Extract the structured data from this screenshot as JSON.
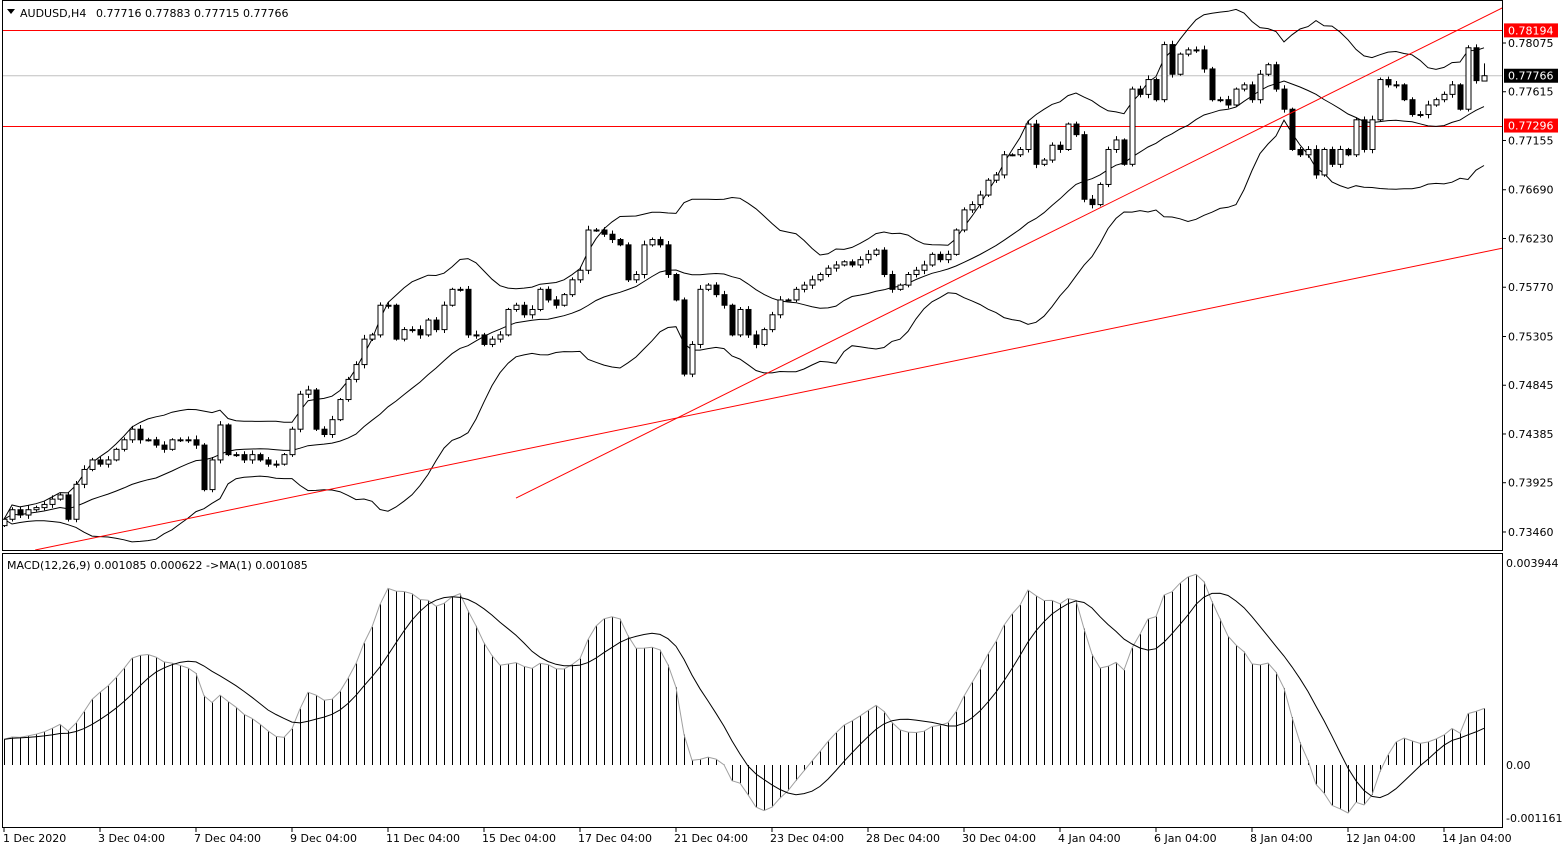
{
  "header": {
    "symbol": "AUDUSD,H4",
    "ohlc": "0.77716 0.77883 0.77715 0.77766"
  },
  "macd_header": {
    "text": "MACD(12,26,9) 0.001085 0.000622  ->MA(1) 0.001085"
  },
  "colors": {
    "line_red": "#ff0000",
    "price_label_black": "#000000",
    "bullish": "#ffffff",
    "bearish": "#000000",
    "current_price_line": "#c0c0c0"
  },
  "chart_data": [
    {
      "type": "candlestick",
      "title": "AUDUSD,H4",
      "ylim": [
        0.732,
        0.7848
      ],
      "price_ticks": [
        "0.78075",
        "0.77615",
        "0.77155",
        "0.76690",
        "0.76230",
        "0.75770",
        "0.75305",
        "0.74845",
        "0.74385",
        "0.73925",
        "0.73460"
      ],
      "x_labels": [
        "1 Dec 2020",
        "3 Dec 04:00",
        "7 Dec 04:00",
        "9 Dec 04:00",
        "11 Dec 04:00",
        "15 Dec 04:00",
        "17 Dec 04:00",
        "21 Dec 04:00",
        "23 Dec 04:00",
        "28 Dec 04:00",
        "30 Dec 04:00",
        "4 Jan 04:00",
        "6 Jan 04:00",
        "8 Jan 04:00",
        "12 Jan 04:00",
        "14 Jan 04:00"
      ],
      "x_label_every_bars": 12,
      "first_open": 0.7352,
      "last_bar": {
        "open": 0.77716,
        "high": 0.77883,
        "low": 0.77715,
        "close": 0.77766
      },
      "closes": [
        0.7358,
        0.7367,
        0.7362,
        0.7367,
        0.7369,
        0.7372,
        0.7377,
        0.7381,
        0.7358,
        0.7391,
        0.7405,
        0.7414,
        0.741,
        0.7414,
        0.7424,
        0.7433,
        0.7443,
        0.7433,
        0.7433,
        0.7428,
        0.7424,
        0.7433,
        0.7433,
        0.7433,
        0.7428,
        0.7386,
        0.7414,
        0.7447,
        0.7419,
        0.7419,
        0.7414,
        0.7419,
        0.7414,
        0.741,
        0.741,
        0.7419,
        0.7443,
        0.7476,
        0.748,
        0.7443,
        0.7438,
        0.7452,
        0.7471,
        0.749,
        0.7504,
        0.7528,
        0.7532,
        0.756,
        0.756,
        0.7528,
        0.7537,
        0.7537,
        0.7532,
        0.7546,
        0.7537,
        0.756,
        0.7575,
        0.7575,
        0.7532,
        0.7532,
        0.7523,
        0.7528,
        0.7532,
        0.7556,
        0.756,
        0.7551,
        0.7556,
        0.7575,
        0.7565,
        0.756,
        0.757,
        0.7584,
        0.7593,
        0.7631,
        0.7631,
        0.7627,
        0.7622,
        0.7617,
        0.7584,
        0.7589,
        0.7617,
        0.7622,
        0.7617,
        0.7589,
        0.7565,
        0.7495,
        0.7523,
        0.7575,
        0.7579,
        0.757,
        0.756,
        0.7532,
        0.7556,
        0.7532,
        0.7523,
        0.7537,
        0.7551,
        0.7565,
        0.7565,
        0.7575,
        0.7579,
        0.7584,
        0.7589,
        0.7595,
        0.7598,
        0.7601,
        0.7598,
        0.7603,
        0.7608,
        0.7612,
        0.7589,
        0.7575,
        0.7579,
        0.7589,
        0.7593,
        0.7598,
        0.7608,
        0.7603,
        0.7608,
        0.7631,
        0.765,
        0.7655,
        0.7664,
        0.7678,
        0.7683,
        0.7702,
        0.7702,
        0.7707,
        0.7731,
        0.7693,
        0.7697,
        0.7711,
        0.7707,
        0.7731,
        0.7721,
        0.766,
        0.7655,
        0.7674,
        0.7707,
        0.7716,
        0.7693,
        0.7764,
        0.7759,
        0.7773,
        0.7754,
        0.7806,
        0.7778,
        0.7797,
        0.7801,
        0.7801,
        0.7783,
        0.7754,
        0.7754,
        0.7749,
        0.7764,
        0.7768,
        0.7754,
        0.7778,
        0.7787,
        0.7764,
        0.7745,
        0.7707,
        0.7702,
        0.7707,
        0.7683,
        0.7707,
        0.7693,
        0.7707,
        0.7702,
        0.7735,
        0.7707,
        0.7735,
        0.7773,
        0.7768,
        0.7768,
        0.7754,
        0.774,
        0.774,
        0.7749,
        0.7754,
        0.7759,
        0.7768,
        0.7745,
        0.7803,
        0.7772,
        0.77766
      ],
      "indicators": {
        "bollinger": {
          "period": 20,
          "deviations": 2
        }
      },
      "horizontal_lines": [
        {
          "price": 0.78194,
          "label": "0.78194",
          "color": "#ff0000"
        },
        {
          "price": 0.77296,
          "label": "0.77296",
          "color": "#ff0000"
        }
      ],
      "current_price": {
        "price": 0.77766,
        "label": "0.77766"
      },
      "trend_lines": [
        {
          "from": {
            "bar": 64,
            "price": 0.7378
          },
          "to": {
            "bar": 187.4,
            "price": 0.7841
          },
          "color": "#ff0000"
        },
        {
          "from": {
            "bar": 3.9,
            "price": 0.7329
          },
          "to": {
            "bar": 187.4,
            "price": 0.7614
          },
          "color": "#ff0000"
        }
      ]
    },
    {
      "type": "bar",
      "title": "MACD(12,26,9)",
      "params": {
        "fast": 12,
        "slow": 26,
        "signal": 9
      },
      "values": {
        "main": 0.001085,
        "signal": 0.000622,
        "ma1": 0.001085
      },
      "ylim": [
        -0.001161,
        0.003944
      ],
      "y_ticks": [
        "0.003944",
        "0.00",
        "-0.001161"
      ]
    }
  ]
}
